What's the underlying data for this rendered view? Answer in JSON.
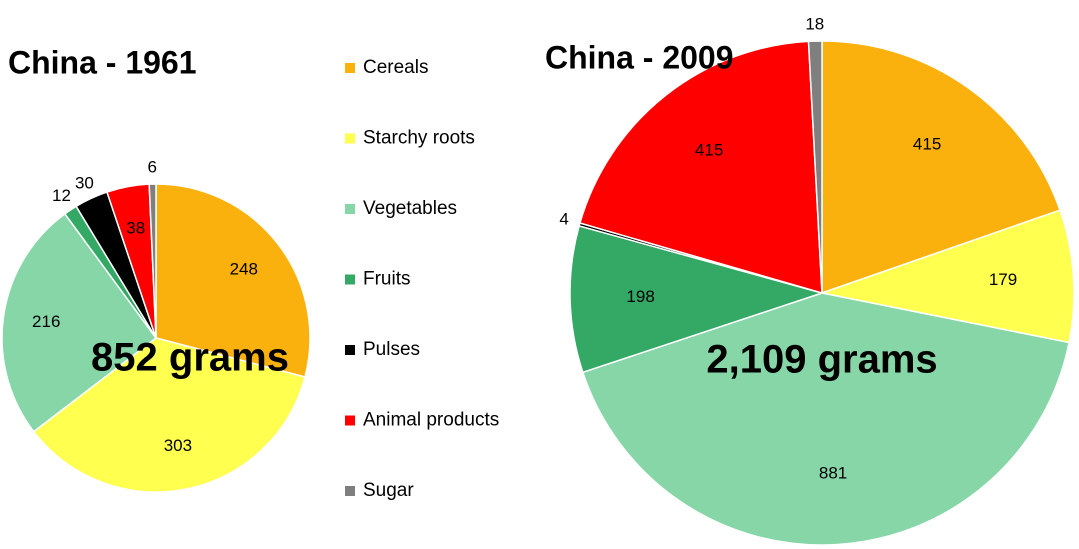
{
  "chart_data": [
    {
      "type": "pie",
      "title": "China - 1961",
      "annotation": "852 grams",
      "categories": [
        "Cereals",
        "Starchy roots",
        "Vegetables",
        "Fruits",
        "Pulses",
        "Animal products",
        "Sugar"
      ],
      "colors": [
        "#fbb10d",
        "#ffff4f",
        "#86d6a7",
        "#34a865",
        "#000000",
        "#ff0000",
        "#7f7f7f"
      ],
      "values": [
        248,
        303,
        216,
        12,
        30,
        38,
        6
      ]
    },
    {
      "type": "pie",
      "title": "China - 2009",
      "annotation": "2,109 grams",
      "values": [
        415,
        179,
        881,
        198,
        4,
        415,
        18
      ]
    }
  ]
}
